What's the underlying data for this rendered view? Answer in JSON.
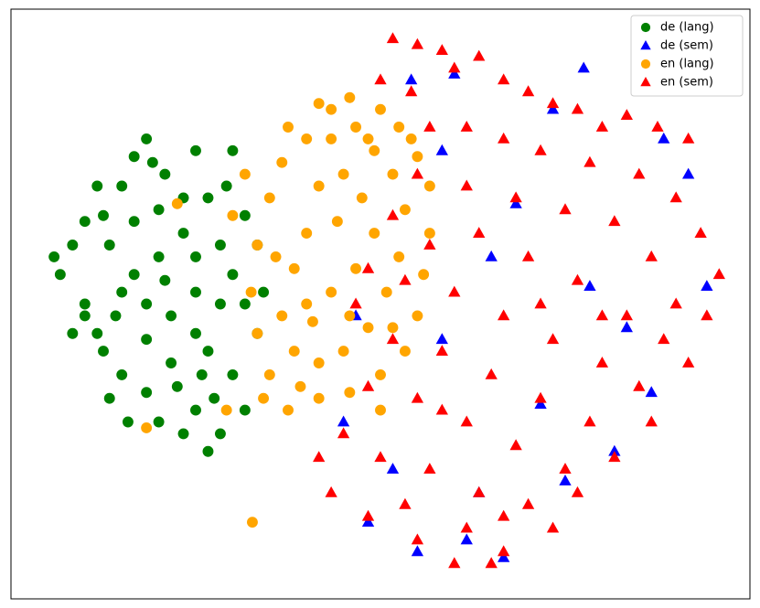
{
  "chart_data": {
    "type": "scatter",
    "xlim": [
      -60,
      60
    ],
    "ylim": [
      -50,
      50
    ],
    "legend": "upper right",
    "series": [
      {
        "name": "de (lang)",
        "color": "#008000",
        "marker": "circle",
        "x": [
          -50,
          -48,
          -45,
          -52,
          -46,
          -42,
          -40,
          -38,
          -35,
          -30,
          -28,
          -25,
          -22,
          -20,
          -24,
          -26,
          -30,
          -34,
          -38,
          -42,
          -45,
          -48,
          -40,
          -36,
          -32,
          -38,
          -42,
          -34,
          -30,
          -28,
          -24,
          -22,
          -26,
          -28,
          -30,
          -36,
          -44,
          -50,
          -53,
          -44,
          -40,
          -36,
          -32,
          -30,
          -26,
          -22,
          -20,
          -19,
          -35,
          -38,
          -33,
          -27,
          -48,
          -46,
          -24,
          -32,
          -41,
          -29,
          -37,
          -43
        ],
        "y": [
          10,
          0,
          15,
          5,
          -5,
          20,
          25,
          28,
          22,
          26,
          18,
          20,
          15,
          10,
          5,
          0,
          -5,
          -10,
          -15,
          -12,
          -8,
          -2,
          5,
          8,
          12,
          0,
          2,
          -2,
          2,
          -8,
          -12,
          -18,
          -22,
          -25,
          -18,
          -20,
          -16,
          -5,
          8,
          10,
          14,
          16,
          18,
          8,
          10,
          0,
          -5,
          2,
          4,
          -6,
          -14,
          -16,
          14,
          20,
          26,
          -22,
          -20,
          -12,
          24,
          -2
        ]
      },
      {
        "name": "de (sem)",
        "color": "#0000ff",
        "marker": "triangle",
        "x": [
          5,
          12,
          28,
          33,
          46,
          50,
          53,
          40,
          22,
          10,
          -4,
          -6,
          2,
          14,
          20,
          30,
          38,
          16,
          6,
          26,
          18,
          -2,
          34,
          10,
          44
        ],
        "y": [
          38,
          39,
          33,
          40,
          28,
          22,
          3,
          -4,
          17,
          -6,
          -2,
          -20,
          -28,
          -40,
          -43,
          -30,
          -25,
          -32,
          -42,
          -17,
          8,
          -37,
          3,
          26,
          -15
        ]
      },
      {
        "name": "en (lang)",
        "color": "#ffa500",
        "marker": "circle",
        "x": [
          -15,
          -10,
          -5,
          0,
          3,
          6,
          8,
          8,
          7,
          6,
          4,
          0,
          -5,
          -10,
          -15,
          -18,
          -20,
          -21,
          -20,
          -18,
          -16,
          -12,
          -8,
          -4,
          -1,
          2,
          4,
          3,
          1,
          -2,
          -6,
          -10,
          -14,
          -16,
          -14,
          -12,
          -10,
          -6,
          -3,
          -1,
          -4,
          -8,
          -11,
          -7,
          -5,
          -12,
          -17,
          -13,
          -19,
          0,
          5,
          -8,
          -24,
          -33,
          -38,
          -25,
          -20.8,
          -22,
          2,
          -2
        ],
        "y": [
          30,
          34,
          35,
          33,
          30,
          25,
          20,
          12,
          5,
          -2,
          -8,
          -12,
          -15,
          -16,
          -18,
          -12,
          -5,
          2,
          10,
          18,
          24,
          28,
          28,
          30,
          26,
          22,
          16,
          8,
          2,
          -4,
          -8,
          -10,
          -8,
          -2,
          6,
          12,
          20,
          22,
          18,
          12,
          6,
          2,
          -3,
          14,
          -2,
          0,
          8,
          -14,
          -16,
          -18,
          28,
          33,
          15,
          17,
          -21,
          -18,
          -37,
          22,
          -4,
          28
        ]
      },
      {
        "name": "en (sem)",
        "color": "#ff0000",
        "marker": "triangle",
        "x": [
          2,
          6,
          10,
          0,
          5,
          12,
          16,
          20,
          24,
          28,
          32,
          36,
          40,
          45,
          50,
          8,
          14,
          20,
          26,
          34,
          42,
          48,
          52,
          55,
          53,
          48,
          44,
          38,
          30,
          22,
          14,
          6,
          2,
          8,
          16,
          24,
          32,
          40,
          46,
          50,
          42,
          36,
          28,
          20,
          12,
          4,
          -2,
          -4,
          2,
          10,
          18,
          26,
          34,
          38,
          30,
          22,
          14,
          6,
          -2,
          -6,
          0,
          8,
          16,
          24,
          28,
          20,
          12,
          6,
          -2,
          -8,
          -10,
          4,
          18,
          14,
          32,
          10,
          20,
          44,
          36,
          26
        ],
        "y": [
          45,
          44,
          43,
          38,
          36,
          40,
          42,
          38,
          36,
          34,
          33,
          30,
          32,
          30,
          28,
          30,
          30,
          28,
          26,
          24,
          22,
          18,
          12,
          5,
          -2,
          0,
          8,
          14,
          16,
          18,
          20,
          22,
          15,
          10,
          12,
          8,
          4,
          -2,
          -6,
          -10,
          -14,
          -10,
          -6,
          -2,
          2,
          4,
          6,
          0,
          -6,
          -8,
          -12,
          -16,
          -20,
          -26,
          -28,
          -24,
          -20,
          -16,
          -14,
          -22,
          -26,
          -28,
          -32,
          -34,
          -38,
          -42,
          -44,
          -40,
          -36,
          -32,
          -26,
          -34,
          -44,
          -38,
          -32,
          -18,
          -36,
          -20,
          -2,
          0
        ]
      }
    ]
  }
}
